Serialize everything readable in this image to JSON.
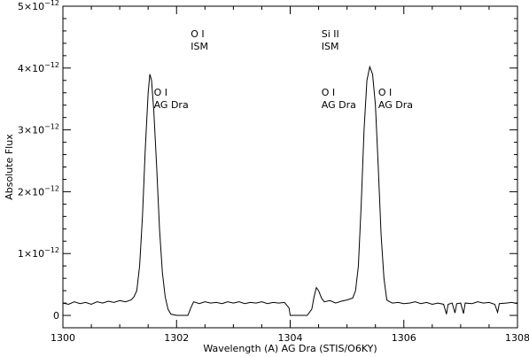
{
  "chart_data": {
    "type": "line",
    "xlabel": "Wavelength (A)  AG Dra (STIS/O6KY)",
    "ylabel": "Absolute Flux",
    "xlim": [
      1300,
      1308
    ],
    "ylim": [
      -0.2,
      5.0
    ],
    "y_scale_note": "×10^-12",
    "x_ticks": [
      1300,
      1302,
      1304,
      1306,
      1308
    ],
    "x_tick_labels": [
      "1300",
      "1302",
      "1304",
      "1306",
      "1308"
    ],
    "y_ticks": [
      0,
      1,
      2,
      3,
      4,
      5
    ],
    "y_tick_labels": [
      {
        "base": "0",
        "exp": ""
      },
      {
        "base": "1×10",
        "exp": "−12"
      },
      {
        "base": "2×10",
        "exp": "−12"
      },
      {
        "base": "3×10",
        "exp": "−12"
      },
      {
        "base": "4×10",
        "exp": "−12"
      },
      {
        "base": "5×10",
        "exp": "−12"
      }
    ],
    "annotations": [
      {
        "line1": "O I",
        "line2": "ISM",
        "x": 1302.25,
        "y_top": 4.5
      },
      {
        "line1": "Si II",
        "line2": "ISM",
        "x": 1304.55,
        "y_top": 4.5
      },
      {
        "line1": "O I",
        "line2": "AG Dra",
        "x": 1301.6,
        "y_top": 3.55
      },
      {
        "line1": "O I",
        "line2": "AG Dra",
        "x": 1304.55,
        "y_top": 3.55
      },
      {
        "line1": "O I",
        "line2": "AG Dra",
        "x": 1305.55,
        "y_top": 3.55
      }
    ],
    "series": [
      {
        "points": [
          [
            1300.0,
            0.2
          ],
          [
            1300.1,
            0.18
          ],
          [
            1300.2,
            0.22
          ],
          [
            1300.3,
            0.19
          ],
          [
            1300.4,
            0.21
          ],
          [
            1300.5,
            0.18
          ],
          [
            1300.6,
            0.22
          ],
          [
            1300.7,
            0.2
          ],
          [
            1300.8,
            0.23
          ],
          [
            1300.9,
            0.21
          ],
          [
            1301.0,
            0.24
          ],
          [
            1301.1,
            0.22
          ],
          [
            1301.2,
            0.25
          ],
          [
            1301.25,
            0.3
          ],
          [
            1301.3,
            0.4
          ],
          [
            1301.35,
            0.8
          ],
          [
            1301.4,
            1.6
          ],
          [
            1301.45,
            2.7
          ],
          [
            1301.5,
            3.6
          ],
          [
            1301.53,
            3.9
          ],
          [
            1301.56,
            3.8
          ],
          [
            1301.6,
            3.3
          ],
          [
            1301.65,
            2.4
          ],
          [
            1301.7,
            1.4
          ],
          [
            1301.75,
            0.7
          ],
          [
            1301.8,
            0.3
          ],
          [
            1301.85,
            0.1
          ],
          [
            1301.9,
            0.02
          ],
          [
            1302.0,
            0.0
          ],
          [
            1302.1,
            0.0
          ],
          [
            1302.2,
            0.0
          ],
          [
            1302.25,
            0.12
          ],
          [
            1302.3,
            0.22
          ],
          [
            1302.4,
            0.19
          ],
          [
            1302.5,
            0.22
          ],
          [
            1302.6,
            0.2
          ],
          [
            1302.7,
            0.21
          ],
          [
            1302.8,
            0.19
          ],
          [
            1302.9,
            0.22
          ],
          [
            1303.0,
            0.2
          ],
          [
            1303.1,
            0.22
          ],
          [
            1303.2,
            0.19
          ],
          [
            1303.3,
            0.21
          ],
          [
            1303.4,
            0.2
          ],
          [
            1303.5,
            0.22
          ],
          [
            1303.6,
            0.19
          ],
          [
            1303.7,
            0.21
          ],
          [
            1303.8,
            0.2
          ],
          [
            1303.9,
            0.21
          ],
          [
            1303.98,
            0.12
          ],
          [
            1304.0,
            0.0
          ],
          [
            1304.1,
            0.0
          ],
          [
            1304.2,
            0.0
          ],
          [
            1304.3,
            0.0
          ],
          [
            1304.38,
            0.1
          ],
          [
            1304.42,
            0.3
          ],
          [
            1304.46,
            0.45
          ],
          [
            1304.5,
            0.4
          ],
          [
            1304.55,
            0.28
          ],
          [
            1304.6,
            0.22
          ],
          [
            1304.7,
            0.24
          ],
          [
            1304.8,
            0.2
          ],
          [
            1304.9,
            0.23
          ],
          [
            1305.0,
            0.25
          ],
          [
            1305.1,
            0.28
          ],
          [
            1305.15,
            0.4
          ],
          [
            1305.2,
            0.8
          ],
          [
            1305.25,
            1.8
          ],
          [
            1305.3,
            3.0
          ],
          [
            1305.35,
            3.8
          ],
          [
            1305.4,
            4.02
          ],
          [
            1305.45,
            3.9
          ],
          [
            1305.5,
            3.4
          ],
          [
            1305.55,
            2.4
          ],
          [
            1305.6,
            1.3
          ],
          [
            1305.65,
            0.6
          ],
          [
            1305.7,
            0.25
          ],
          [
            1305.75,
            0.22
          ],
          [
            1305.8,
            0.2
          ],
          [
            1305.9,
            0.21
          ],
          [
            1306.0,
            0.19
          ],
          [
            1306.1,
            0.2
          ],
          [
            1306.2,
            0.22
          ],
          [
            1306.3,
            0.19
          ],
          [
            1306.4,
            0.21
          ],
          [
            1306.5,
            0.18
          ],
          [
            1306.6,
            0.2
          ],
          [
            1306.7,
            0.18
          ],
          [
            1306.75,
            0.02
          ],
          [
            1306.78,
            0.18
          ],
          [
            1306.85,
            0.2
          ],
          [
            1306.9,
            0.04
          ],
          [
            1306.93,
            0.19
          ],
          [
            1307.0,
            0.2
          ],
          [
            1307.05,
            0.03
          ],
          [
            1307.08,
            0.2
          ],
          [
            1307.2,
            0.19
          ],
          [
            1307.3,
            0.22
          ],
          [
            1307.4,
            0.2
          ],
          [
            1307.5,
            0.21
          ],
          [
            1307.6,
            0.18
          ],
          [
            1307.65,
            0.05
          ],
          [
            1307.68,
            0.19
          ],
          [
            1307.8,
            0.2
          ],
          [
            1307.9,
            0.21
          ],
          [
            1308.0,
            0.19
          ]
        ]
      }
    ]
  }
}
